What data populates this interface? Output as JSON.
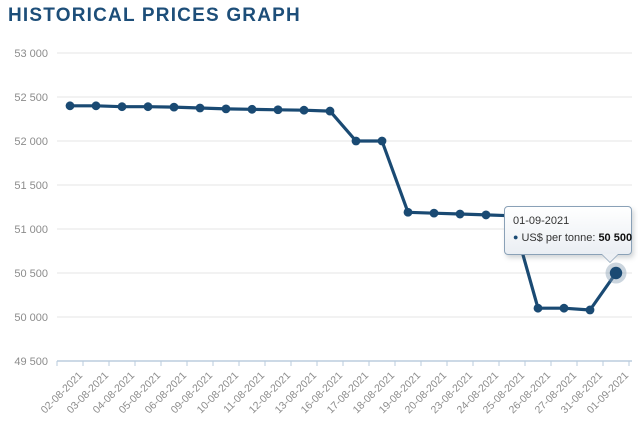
{
  "title": "HISTORICAL PRICES GRAPH",
  "colors": {
    "title": "#1d4e79",
    "line": "#1a4a73",
    "marker": "#1a4a73",
    "halo": "#7e97ac",
    "grid": "#e6e6e6",
    "axis_line": "#ccd9e6",
    "tick": "#b9cbdc",
    "axis_label": "#8c8c8c",
    "tooltip_border": "#8aa1b7"
  },
  "icons": {
    "series_marker": "●"
  },
  "tooltip": {
    "date": "01-09-2021",
    "label": "US$ per tonne:",
    "value": "50 500"
  },
  "chart_data": {
    "type": "line",
    "title": "HISTORICAL PRICES GRAPH",
    "series": [
      {
        "name": "US$ per tonne",
        "values": [
          52400,
          52400,
          52390,
          52390,
          52385,
          52375,
          52365,
          52360,
          52355,
          52350,
          52340,
          52000,
          52000,
          51190,
          51180,
          51170,
          51160,
          51150,
          50100,
          50100,
          50080,
          50500
        ]
      }
    ],
    "categories": [
      "02-08-2021",
      "03-08-2021",
      "04-08-2021",
      "05-08-2021",
      "06-08-2021",
      "09-08-2021",
      "10-08-2021",
      "11-08-2021",
      "12-08-2021",
      "13-08-2021",
      "16-08-2021",
      "17-08-2021",
      "18-08-2021",
      "19-08-2021",
      "20-08-2021",
      "23-08-2021",
      "24-08-2021",
      "25-08-2021",
      "26-08-2021",
      "27-08-2021",
      "31-08-2021",
      "01-09-2021"
    ],
    "xlabel": "",
    "ylabel": "",
    "ylim": [
      49500,
      53000
    ],
    "ytick_interval": 500,
    "ytick_labels": [
      "49 500",
      "50 000",
      "50 500",
      "51 000",
      "51 500",
      "52 000",
      "52 500",
      "53 000"
    ],
    "grid": true,
    "legend": false,
    "highlighted_point": {
      "category": "01-09-2021",
      "value": 50500,
      "value_label": "50 500"
    }
  }
}
